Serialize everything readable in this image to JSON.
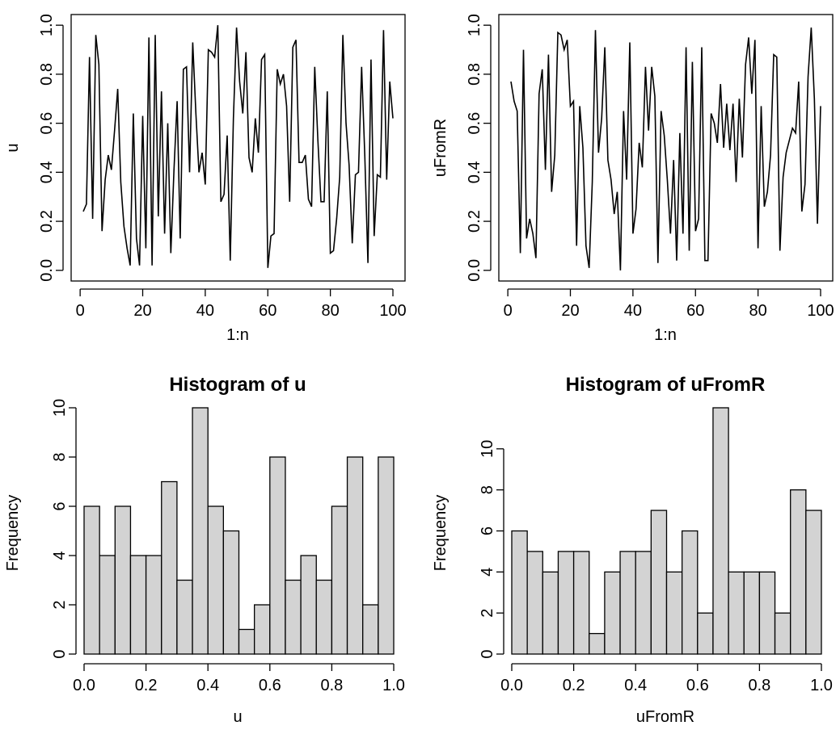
{
  "chart_data": [
    {
      "type": "line",
      "title": "",
      "xlabel": "1:n",
      "ylabel": "u",
      "xlim": [
        1,
        100
      ],
      "ylim": [
        0,
        1
      ],
      "xticks": [
        0,
        20,
        40,
        60,
        80,
        100
      ],
      "yticks": [
        0.0,
        0.2,
        0.4,
        0.6,
        0.8,
        1.0
      ],
      "xtick_labels": [
        "0",
        "20",
        "40",
        "60",
        "80",
        "100"
      ],
      "ytick_labels": [
        "0.0",
        "0.2",
        "0.4",
        "0.6",
        "0.8",
        "1.0"
      ],
      "x": [
        1,
        2,
        3,
        4,
        5,
        6,
        7,
        8,
        9,
        10,
        11,
        12,
        13,
        14,
        15,
        16,
        17,
        18,
        19,
        20,
        21,
        22,
        23,
        24,
        25,
        26,
        27,
        28,
        29,
        30,
        31,
        32,
        33,
        34,
        35,
        36,
        37,
        38,
        39,
        40,
        41,
        42,
        43,
        44,
        45,
        46,
        47,
        48,
        49,
        50,
        51,
        52,
        53,
        54,
        55,
        56,
        57,
        58,
        59,
        60,
        61,
        62,
        63,
        64,
        65,
        66,
        67,
        68,
        69,
        70,
        71,
        72,
        73,
        74,
        75,
        76,
        77,
        78,
        79,
        80,
        81,
        82,
        83,
        84,
        85,
        86,
        87,
        88,
        89,
        90,
        91,
        92,
        93,
        94,
        95,
        96,
        97,
        98,
        99,
        100
      ],
      "y": [
        0.24,
        0.27,
        0.87,
        0.21,
        0.96,
        0.84,
        0.16,
        0.37,
        0.47,
        0.41,
        0.57,
        0.74,
        0.36,
        0.18,
        0.09,
        0.02,
        0.64,
        0.13,
        0.02,
        0.63,
        0.09,
        0.95,
        0.02,
        0.96,
        0.22,
        0.73,
        0.15,
        0.6,
        0.07,
        0.41,
        0.69,
        0.13,
        0.82,
        0.83,
        0.4,
        0.93,
        0.64,
        0.4,
        0.48,
        0.35,
        0.9,
        0.89,
        0.87,
        1.0,
        0.28,
        0.31,
        0.55,
        0.04,
        0.62,
        0.99,
        0.77,
        0.64,
        0.89,
        0.46,
        0.4,
        0.62,
        0.48,
        0.86,
        0.88,
        0.01,
        0.14,
        0.15,
        0.82,
        0.76,
        0.8,
        0.67,
        0.28,
        0.91,
        0.94,
        0.44,
        0.44,
        0.47,
        0.29,
        0.26,
        0.83,
        0.53,
        0.28,
        0.28,
        0.73,
        0.07,
        0.08,
        0.21,
        0.38,
        0.96,
        0.6,
        0.43,
        0.11,
        0.39,
        0.4,
        0.83,
        0.47,
        0.03,
        0.86,
        0.14,
        0.39,
        0.38,
        0.98,
        0.37,
        0.77,
        0.62
      ]
    },
    {
      "type": "line",
      "title": "",
      "xlabel": "1:n",
      "ylabel": "uFromR",
      "xlim": [
        1,
        100
      ],
      "ylim": [
        0,
        1
      ],
      "xticks": [
        0,
        20,
        40,
        60,
        80,
        100
      ],
      "yticks": [
        0.0,
        0.2,
        0.4,
        0.6,
        0.8,
        1.0
      ],
      "xtick_labels": [
        "0",
        "20",
        "40",
        "60",
        "80",
        "100"
      ],
      "ytick_labels": [
        "0.0",
        "0.2",
        "0.4",
        "0.6",
        "0.8",
        "1.0"
      ],
      "x": [
        1,
        2,
        3,
        4,
        5,
        6,
        7,
        8,
        9,
        10,
        11,
        12,
        13,
        14,
        15,
        16,
        17,
        18,
        19,
        20,
        21,
        22,
        23,
        24,
        25,
        26,
        27,
        28,
        29,
        30,
        31,
        32,
        33,
        34,
        35,
        36,
        37,
        38,
        39,
        40,
        41,
        42,
        43,
        44,
        45,
        46,
        47,
        48,
        49,
        50,
        51,
        52,
        53,
        54,
        55,
        56,
        57,
        58,
        59,
        60,
        61,
        62,
        63,
        64,
        65,
        66,
        67,
        68,
        69,
        70,
        71,
        72,
        73,
        74,
        75,
        76,
        77,
        78,
        79,
        80,
        81,
        82,
        83,
        84,
        85,
        86,
        87,
        88,
        89,
        90,
        91,
        92,
        93,
        94,
        95,
        96,
        97,
        98,
        99,
        100
      ],
      "y": [
        0.77,
        0.69,
        0.65,
        0.07,
        0.9,
        0.13,
        0.21,
        0.15,
        0.05,
        0.72,
        0.82,
        0.41,
        0.88,
        0.32,
        0.47,
        0.97,
        0.96,
        0.9,
        0.94,
        0.67,
        0.69,
        0.1,
        0.67,
        0.5,
        0.1,
        0.01,
        0.36,
        0.98,
        0.48,
        0.62,
        0.91,
        0.45,
        0.37,
        0.23,
        0.32,
        0.0,
        0.65,
        0.37,
        0.93,
        0.15,
        0.25,
        0.52,
        0.42,
        0.83,
        0.57,
        0.83,
        0.71,
        0.03,
        0.65,
        0.55,
        0.37,
        0.15,
        0.45,
        0.04,
        0.56,
        0.15,
        0.91,
        0.08,
        0.85,
        0.16,
        0.21,
        0.91,
        0.04,
        0.04,
        0.64,
        0.6,
        0.52,
        0.76,
        0.5,
        0.68,
        0.49,
        0.68,
        0.36,
        0.7,
        0.46,
        0.84,
        0.95,
        0.72,
        0.94,
        0.09,
        0.67,
        0.26,
        0.32,
        0.47,
        0.88,
        0.87,
        0.08,
        0.38,
        0.48,
        0.53,
        0.58,
        0.56,
        0.77,
        0.24,
        0.35,
        0.79,
        0.99,
        0.7,
        0.19,
        0.67
      ]
    },
    {
      "type": "bar",
      "title": "Histogram of u",
      "xlabel": "u",
      "ylabel": "Frequency",
      "bin_edges": [
        0.0,
        0.05,
        0.1,
        0.15,
        0.2,
        0.25,
        0.3,
        0.35,
        0.4,
        0.45,
        0.5,
        0.55,
        0.6,
        0.65,
        0.7,
        0.75,
        0.8,
        0.85,
        0.9,
        0.95,
        1.0
      ],
      "values": [
        6,
        4,
        6,
        4,
        4,
        7,
        3,
        10,
        6,
        5,
        1,
        2,
        8,
        3,
        4,
        3,
        6,
        8,
        2,
        8
      ],
      "xlim": [
        0,
        1
      ],
      "ylim": [
        0,
        10
      ],
      "xticks": [
        0.0,
        0.2,
        0.4,
        0.6,
        0.8,
        1.0
      ],
      "yticks": [
        0,
        2,
        4,
        6,
        8,
        10
      ],
      "xtick_labels": [
        "0.0",
        "0.2",
        "0.4",
        "0.6",
        "0.8",
        "1.0"
      ],
      "ytick_labels": [
        "0",
        "2",
        "4",
        "6",
        "8",
        "10"
      ],
      "bar_color": "#d3d3d3"
    },
    {
      "type": "bar",
      "title": "Histogram of uFromR",
      "xlabel": "uFromR",
      "ylabel": "Frequency",
      "bin_edges": [
        0.0,
        0.05,
        0.1,
        0.15,
        0.2,
        0.25,
        0.3,
        0.35,
        0.4,
        0.45,
        0.5,
        0.55,
        0.6,
        0.65,
        0.7,
        0.75,
        0.8,
        0.85,
        0.9,
        0.95,
        1.0
      ],
      "values": [
        6,
        5,
        4,
        5,
        5,
        1,
        4,
        5,
        5,
        7,
        4,
        6,
        2,
        12,
        4,
        4,
        4,
        2,
        8,
        7
      ],
      "xlim": [
        0,
        1
      ],
      "ylim": [
        0,
        12
      ],
      "xticks": [
        0.0,
        0.2,
        0.4,
        0.6,
        0.8,
        1.0
      ],
      "yticks": [
        0,
        2,
        4,
        6,
        8,
        10
      ],
      "xtick_labels": [
        "0.0",
        "0.2",
        "0.4",
        "0.6",
        "0.8",
        "1.0"
      ],
      "ytick_labels": [
        "0",
        "2",
        "4",
        "6",
        "8",
        "10"
      ],
      "bar_color": "#d3d3d3"
    }
  ]
}
